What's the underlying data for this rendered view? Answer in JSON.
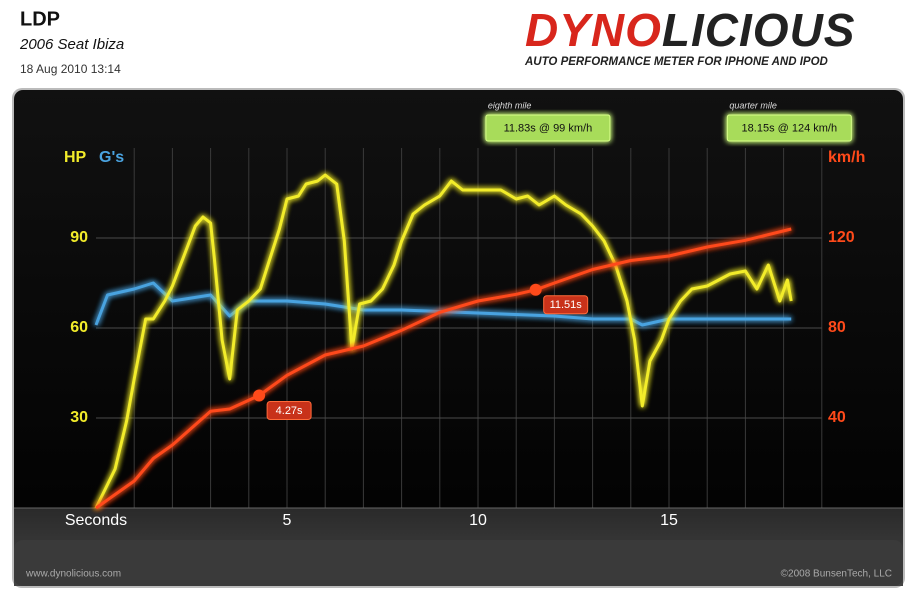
{
  "header": {
    "title": "LDP",
    "subtitle": "2006 Seat Ibiza",
    "date": "18 Aug 2010 13:14"
  },
  "logo": {
    "brand_red": "DYNO",
    "brand_dark": "LICIOUS",
    "tagline": "AUTO PERFORMANCE METER FOR IPHONE AND IPOD"
  },
  "footer": {
    "left": "www.dynolicious.com",
    "right": "©2008 BunsenTech, LLC"
  },
  "chart_data": {
    "type": "line",
    "xlabel": "Seconds",
    "xlim": [
      0,
      19
    ],
    "xticks": [
      5,
      10,
      15
    ],
    "xminorticks": [
      1,
      2,
      3,
      4,
      5,
      6,
      7,
      8,
      9,
      10,
      11,
      12,
      13,
      14,
      15,
      16,
      17,
      18,
      19
    ],
    "ylim": [
      0,
      120
    ],
    "yticks": [
      30,
      60,
      90
    ],
    "y2lim": [
      0,
      160
    ],
    "y2ticks": [
      40,
      80,
      120
    ],
    "grid": true,
    "series": [
      {
        "name": "HP",
        "color": "#f2ec2a",
        "x": [
          0,
          0.5,
          0.8,
          1,
          1.3,
          1.5,
          1.8,
          2,
          2.3,
          2.6,
          2.8,
          3,
          3.1,
          3.3,
          3.5,
          3.7,
          4,
          4.3,
          4.5,
          4.8,
          5,
          5.3,
          5.5,
          5.8,
          6,
          6.3,
          6.5,
          6.7,
          6.9,
          7.2,
          7.5,
          7.8,
          8,
          8.3,
          8.6,
          9,
          9.3,
          9.6,
          10,
          10.3,
          10.6,
          11,
          11.3,
          11.6,
          12,
          12.3,
          12.7,
          13,
          13.3,
          13.6,
          13.9,
          14.1,
          14.3,
          14.5,
          14.8,
          15,
          15.3,
          15.6,
          16,
          16.3,
          16.6,
          17,
          17.3,
          17.6,
          17.9,
          18.1,
          18.2
        ],
        "values": [
          0,
          13,
          29,
          43,
          63,
          63,
          69,
          74,
          84,
          94,
          97,
          95,
          83,
          56,
          43,
          66,
          69,
          73,
          81,
          93,
          103,
          104,
          108,
          109,
          111,
          108,
          89,
          53,
          68,
          69,
          73,
          81,
          89,
          98,
          101,
          104,
          109,
          106,
          106,
          106,
          106,
          103,
          104,
          101,
          104,
          101,
          98,
          94,
          89,
          81,
          69,
          56,
          34,
          49,
          56,
          63,
          69,
          73,
          74,
          76,
          78,
          79,
          73,
          81,
          69,
          76,
          69
        ]
      },
      {
        "name": "G's",
        "color": "#4aa3e0",
        "x": [
          0,
          0.3,
          1,
          1.5,
          2,
          3,
          3.5,
          4,
          5,
          6,
          7,
          8,
          10,
          12,
          13,
          14,
          14.3,
          15,
          17,
          18.2
        ],
        "values": [
          61,
          71,
          73,
          75,
          69,
          71,
          64,
          69,
          69,
          68,
          66,
          66,
          65,
          64,
          63,
          63,
          61,
          63,
          63,
          63
        ]
      },
      {
        "name": "km/h",
        "color": "#ff4a1a",
        "axis": "y2",
        "x": [
          0,
          1,
          1.5,
          2,
          3,
          3.5,
          4.27,
          5,
          6,
          7,
          8,
          9,
          10,
          11,
          11.51,
          12,
          13,
          14,
          15,
          16,
          17,
          18.2
        ],
        "values": [
          0,
          12,
          22,
          28,
          43,
          44,
          50,
          59,
          68,
          72,
          79,
          87,
          92,
          95,
          97,
          100,
          106,
          110,
          112,
          116,
          119,
          124
        ]
      }
    ],
    "markers": [
      {
        "x": 4.27,
        "y": 50,
        "label": "4.27s"
      },
      {
        "x": 11.51,
        "y": 97,
        "label": "11.51s"
      }
    ],
    "milestones": [
      {
        "x": 11.83,
        "title": "eighth mile",
        "label": "11.83s @ 99 km/h"
      },
      {
        "x": 18.15,
        "title": "quarter mile",
        "label": "18.15s @ 124 km/h"
      }
    ]
  }
}
